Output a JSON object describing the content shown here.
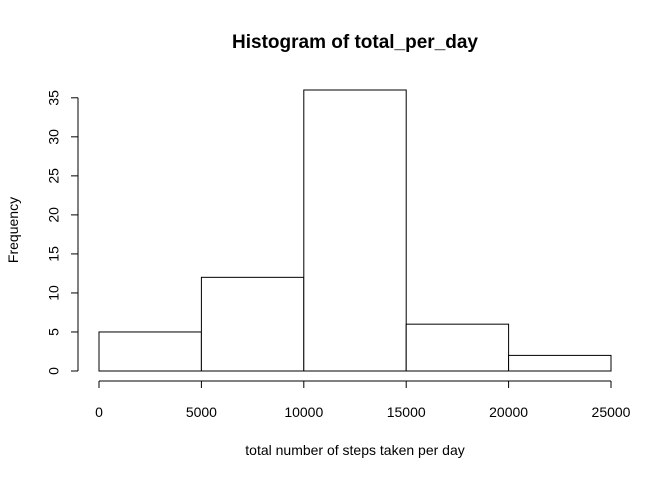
{
  "chart_data": {
    "type": "bar",
    "title": "Histogram of total_per_day",
    "xlabel": "total number of steps taken per day",
    "ylabel": "Frequency",
    "bins": [
      {
        "start": 0,
        "end": 5000,
        "count": 5
      },
      {
        "start": 5000,
        "end": 10000,
        "count": 12
      },
      {
        "start": 10000,
        "end": 15000,
        "count": 36
      },
      {
        "start": 15000,
        "end": 20000,
        "count": 6
      },
      {
        "start": 20000,
        "end": 25000,
        "count": 2
      }
    ],
    "xlim": [
      0,
      25000
    ],
    "ylim": [
      0,
      36
    ],
    "xticks": [
      0,
      5000,
      10000,
      15000,
      20000,
      25000
    ],
    "yticks": [
      0,
      5,
      10,
      15,
      20,
      25,
      30,
      35
    ],
    "grid": false,
    "bar_fill": "#ffffff",
    "bar_stroke": "#000000"
  }
}
